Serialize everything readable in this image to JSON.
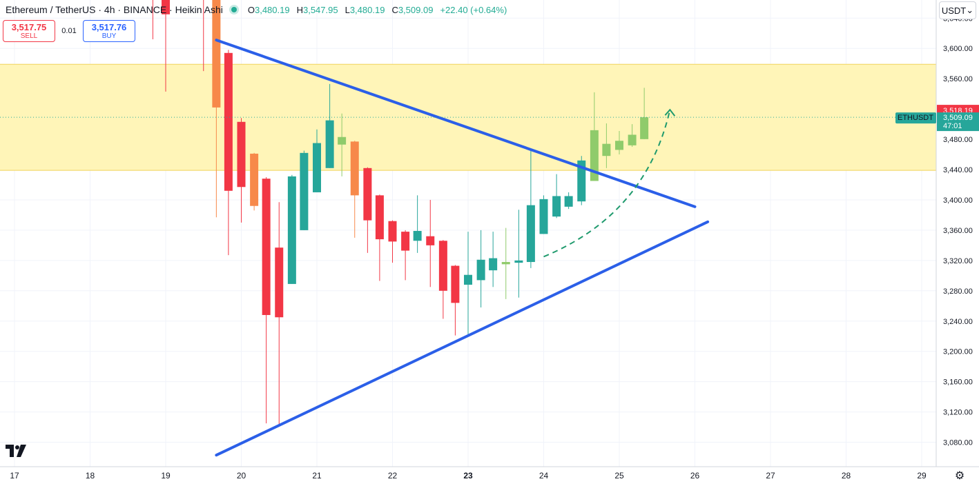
{
  "header": {
    "symbol_title": "Ethereum / TetherUS · 4h · BINANCE · Heikin Ashi",
    "ohlc": [
      {
        "label": "O",
        "value": "3,480.19"
      },
      {
        "label": "H",
        "value": "3,547.95"
      },
      {
        "label": "L",
        "value": "3,480.19"
      },
      {
        "label": "C",
        "value": "3,509.09"
      }
    ],
    "change": "+22.40 (+0.64%)"
  },
  "trade": {
    "sell_price": "3,517.75",
    "sell_label": "SELL",
    "spread": "0.01",
    "buy_price": "3,517.76",
    "buy_label": "BUY"
  },
  "currency_selector": "USDT",
  "logo_text": "TV",
  "colors": {
    "up": "#26a69a",
    "up_light": "#8fcb6b",
    "down": "#f23645",
    "down_light": "#f7894a",
    "trendline": "#2b5fe8",
    "zone_fill": "#fff5b8",
    "zone_border": "#f0d35a",
    "projection": "#1f9a6d"
  },
  "chart_data": {
    "type": "candlestick",
    "style": "Heikin Ashi",
    "ylim": [
      3040,
      3680
    ],
    "y_ticks": [
      "3,080.00",
      "3,120.00",
      "3,160.00",
      "3,200.00",
      "3,240.00",
      "3,280.00",
      "3,320.00",
      "3,360.00",
      "3,400.00",
      "3,440.00",
      "3,480.00",
      "3,520.00",
      "3,560.00",
      "3,600.00",
      "3,640.00"
    ],
    "y_tick_values": [
      3080,
      3120,
      3160,
      3200,
      3240,
      3280,
      3320,
      3360,
      3400,
      3440,
      3480,
      3520,
      3560,
      3600,
      3640
    ],
    "x_ticks": [
      "17",
      "18",
      "19",
      "20",
      "21",
      "22",
      "23",
      "24",
      "25",
      "26",
      "27",
      "28",
      "29"
    ],
    "x_tick_values": [
      17,
      18,
      19,
      20,
      21,
      22,
      23,
      24,
      25,
      26,
      27,
      28,
      29
    ],
    "x_bold_tick": "23",
    "candles": [
      {
        "t": 18.83,
        "o": 3695,
        "h": 3710,
        "l": 3612,
        "c": 3670
      },
      {
        "t": 19.0,
        "o": 3670,
        "h": 3675,
        "l": 3543,
        "c": 3645
      },
      {
        "t": 19.5,
        "o": 3690,
        "h": 3700,
        "l": 3570,
        "c": 3680
      },
      {
        "t": 19.67,
        "o": 3680,
        "h": 3690,
        "l": 3377,
        "c": 3522,
        "light": true
      },
      {
        "t": 19.83,
        "o": 3594,
        "h": 3598,
        "l": 3327,
        "c": 3412
      },
      {
        "t": 20.0,
        "o": 3503,
        "h": 3508,
        "l": 3370,
        "c": 3417
      },
      {
        "t": 20.17,
        "o": 3461,
        "h": 3462,
        "l": 3386,
        "c": 3392,
        "light": true
      },
      {
        "t": 20.33,
        "o": 3428,
        "h": 3430,
        "l": 3105,
        "c": 3248
      },
      {
        "t": 20.5,
        "o": 3337,
        "h": 3397,
        "l": 3103,
        "c": 3245
      },
      {
        "t": 20.67,
        "o": 3289,
        "h": 3433,
        "l": 3289,
        "c": 3431
      },
      {
        "t": 20.83,
        "o": 3360,
        "h": 3465,
        "l": 3360,
        "c": 3462
      },
      {
        "t": 21.0,
        "o": 3410,
        "h": 3493,
        "l": 3410,
        "c": 3475
      },
      {
        "t": 21.17,
        "o": 3442,
        "h": 3553,
        "l": 3442,
        "c": 3505
      },
      {
        "t": 21.33,
        "o": 3473,
        "h": 3514,
        "l": 3431,
        "c": 3483,
        "light": true
      },
      {
        "t": 21.5,
        "o": 3477,
        "h": 3478,
        "l": 3350,
        "c": 3406,
        "light": true
      },
      {
        "t": 21.67,
        "o": 3442,
        "h": 3443,
        "l": 3330,
        "c": 3373
      },
      {
        "t": 21.83,
        "o": 3406,
        "h": 3407,
        "l": 3293,
        "c": 3348
      },
      {
        "t": 22.0,
        "o": 3372,
        "h": 3373,
        "l": 3317,
        "c": 3345
      },
      {
        "t": 22.17,
        "o": 3358,
        "h": 3360,
        "l": 3294,
        "c": 3333
      },
      {
        "t": 22.33,
        "o": 3346,
        "h": 3406,
        "l": 3330,
        "c": 3359
      },
      {
        "t": 22.5,
        "o": 3352,
        "h": 3400,
        "l": 3285,
        "c": 3340
      },
      {
        "t": 22.67,
        "o": 3346,
        "h": 3347,
        "l": 3243,
        "c": 3280
      },
      {
        "t": 22.83,
        "o": 3313,
        "h": 3314,
        "l": 3221,
        "c": 3264
      },
      {
        "t": 23.0,
        "o": 3288,
        "h": 3358,
        "l": 3220,
        "c": 3301
      },
      {
        "t": 23.17,
        "o": 3294,
        "h": 3360,
        "l": 3258,
        "c": 3321
      },
      {
        "t": 23.33,
        "o": 3307,
        "h": 3358,
        "l": 3285,
        "c": 3323
      },
      {
        "t": 23.5,
        "o": 3315,
        "h": 3363,
        "l": 3269,
        "c": 3318,
        "light": true
      },
      {
        "t": 23.67,
        "o": 3317,
        "h": 3387,
        "l": 3271,
        "c": 3320
      },
      {
        "t": 23.83,
        "o": 3318,
        "h": 3465,
        "l": 3310,
        "c": 3393
      },
      {
        "t": 24.0,
        "o": 3355,
        "h": 3406,
        "l": 3355,
        "c": 3401
      },
      {
        "t": 24.17,
        "o": 3378,
        "h": 3434,
        "l": 3376,
        "c": 3405
      },
      {
        "t": 24.33,
        "o": 3391,
        "h": 3410,
        "l": 3388,
        "c": 3405
      },
      {
        "t": 24.5,
        "o": 3398,
        "h": 3458,
        "l": 3393,
        "c": 3452
      },
      {
        "t": 24.67,
        "o": 3425,
        "h": 3542,
        "l": 3425,
        "c": 3492,
        "light": true
      },
      {
        "t": 24.83,
        "o": 3458,
        "h": 3501,
        "l": 3442,
        "c": 3474,
        "light": true
      },
      {
        "t": 25.0,
        "o": 3466,
        "h": 3491,
        "l": 3460,
        "c": 3478,
        "light": true
      },
      {
        "t": 25.17,
        "o": 3472,
        "h": 3500,
        "l": 3470,
        "c": 3486,
        "light": true
      },
      {
        "t": 25.33,
        "o": 3480.19,
        "h": 3547.95,
        "l": 3480.19,
        "c": 3509.09,
        "light": true
      }
    ],
    "resistance_line": {
      "start": [
        19.67,
        3611
      ],
      "end": [
        26.0,
        3391
      ]
    },
    "support_line": {
      "start": [
        19.67,
        3063
      ],
      "end": [
        26.17,
        3371
      ]
    },
    "supply_zone": [
      3439,
      3579
    ],
    "projection_path": {
      "start": [
        24.0,
        3325
      ],
      "mid": [
        25.17,
        3390
      ],
      "end": [
        25.67,
        3519
      ]
    },
    "price_labels": [
      {
        "text": "3,518.19",
        "value": 3518.19,
        "color": "#f23645"
      },
      {
        "text": "3,509.09",
        "sub": "47:01",
        "value": 3509.09,
        "color": "#26a69a"
      }
    ],
    "symbol_tag": "ETHUSDT"
  }
}
